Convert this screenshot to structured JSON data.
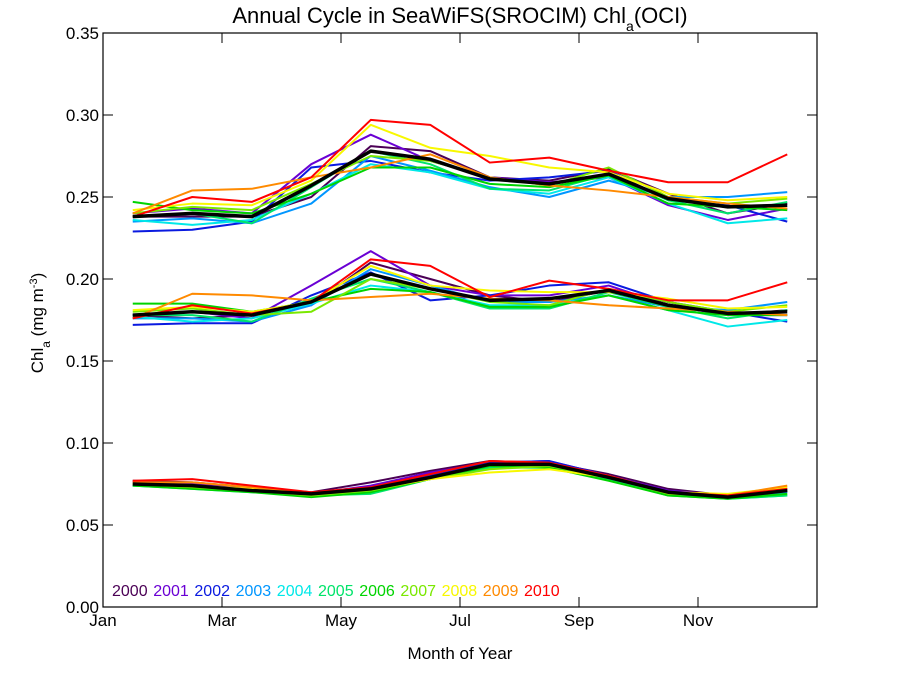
{
  "chart_data": {
    "type": "line",
    "title": "Annual Cycle in SeaWiFS(SROCIM) Chl",
    "title_sub": "a",
    "title_tail": "(OCI)",
    "xlabel": "Month of Year",
    "ylabel_main": "Chl",
    "ylabel_sub": "a",
    "ylabel_units": " (mg m",
    "ylabel_sup": "-3",
    "ylabel_close": ")",
    "xlim": [
      1,
      13
    ],
    "ylim": [
      0,
      0.35
    ],
    "x": [
      1.5,
      2.5,
      3.5,
      4.5,
      5.5,
      6.5,
      7.5,
      8.5,
      9.5,
      10.5,
      11.5,
      12.5
    ],
    "x_ticks": [
      {
        "value": 1,
        "label": "Jan"
      },
      {
        "value": 3,
        "label": "Mar"
      },
      {
        "value": 5,
        "label": "May"
      },
      {
        "value": 7,
        "label": "Jul"
      },
      {
        "value": 9,
        "label": "Sep"
      },
      {
        "value": 11,
        "label": "Nov"
      }
    ],
    "y_ticks": [
      {
        "value": 0.0,
        "label": "0.00"
      },
      {
        "value": 0.05,
        "label": "0.05"
      },
      {
        "value": 0.1,
        "label": "0.10"
      },
      {
        "value": 0.15,
        "label": "0.15"
      },
      {
        "value": 0.2,
        "label": "0.20"
      },
      {
        "value": 0.25,
        "label": "0.25"
      },
      {
        "value": 0.3,
        "label": "0.30"
      },
      {
        "value": 0.35,
        "label": "0.35"
      }
    ],
    "legend_position": "bottom-left",
    "groups": [
      {
        "series": [
          {
            "name": "2000",
            "color": "#4b0055",
            "values": [
              0.238,
              0.238,
              0.238,
              0.25,
              0.281,
              0.278,
              0.262,
              0.26,
              0.267,
              0.252,
              0.24,
              0.246
            ]
          },
          {
            "name": "2001",
            "color": "#6a00d4",
            "values": [
              0.24,
              0.243,
              0.24,
              0.27,
              0.288,
              0.272,
              0.262,
              0.259,
              0.262,
              0.245,
              0.236,
              0.243
            ]
          },
          {
            "name": "2002",
            "color": "#0a1ae0",
            "values": [
              0.229,
              0.23,
              0.235,
              0.268,
              0.272,
              0.265,
              0.26,
              0.262,
              0.266,
              0.248,
              0.245,
              0.235
            ]
          },
          {
            "name": "2003",
            "color": "#0096ff",
            "values": [
              0.235,
              0.237,
              0.234,
              0.246,
              0.275,
              0.266,
              0.256,
              0.25,
              0.26,
              0.25,
              0.25,
              0.253
            ]
          },
          {
            "name": "2004",
            "color": "#00e8e8",
            "values": [
              0.236,
              0.233,
              0.236,
              0.252,
              0.27,
              0.265,
              0.255,
              0.252,
              0.262,
              0.246,
              0.234,
              0.237
            ]
          },
          {
            "name": "2005",
            "color": "#00e46a",
            "values": [
              0.238,
              0.24,
              0.234,
              0.256,
              0.278,
              0.27,
              0.255,
              0.254,
              0.264,
              0.248,
              0.24,
              0.247
            ]
          },
          {
            "name": "2006",
            "color": "#00d400",
            "values": [
              0.247,
              0.242,
              0.24,
              0.252,
              0.268,
              0.268,
              0.258,
              0.256,
              0.263,
              0.246,
              0.244,
              0.242
            ]
          },
          {
            "name": "2007",
            "color": "#7ae800",
            "values": [
              0.24,
              0.244,
              0.242,
              0.258,
              0.275,
              0.272,
              0.262,
              0.257,
              0.268,
              0.25,
              0.246,
              0.249
            ]
          },
          {
            "name": "2008",
            "color": "#f8f800",
            "values": [
              0.242,
              0.246,
              0.245,
              0.26,
              0.294,
              0.28,
              0.275,
              0.268,
              0.265,
              0.252,
              0.248,
              0.25
            ]
          },
          {
            "name": "2009",
            "color": "#ff8a00",
            "values": [
              0.24,
              0.254,
              0.255,
              0.262,
              0.268,
              0.276,
              0.262,
              0.257,
              0.254,
              0.25,
              0.246,
              0.243
            ]
          },
          {
            "name": "2010",
            "color": "#ff0000",
            "values": [
              0.238,
              0.25,
              0.247,
              0.262,
              0.297,
              0.294,
              0.271,
              0.274,
              0.266,
              0.259,
              0.259,
              0.276
            ]
          }
        ],
        "mean": [
          0.238,
          0.24,
          0.238,
          0.257,
          0.278,
          0.273,
          0.261,
          0.258,
          0.264,
          0.249,
          0.244,
          0.245
        ]
      },
      {
        "series": [
          {
            "name": "2000",
            "color": "#4b0055",
            "values": [
              0.178,
              0.176,
              0.178,
              0.184,
              0.21,
              0.2,
              0.19,
              0.186,
              0.193,
              0.186,
              0.178,
              0.181
            ]
          },
          {
            "name": "2001",
            "color": "#6a00d4",
            "values": [
              0.178,
              0.18,
              0.176,
              0.196,
              0.217,
              0.196,
              0.19,
              0.19,
              0.196,
              0.184,
              0.178,
              0.178
            ]
          },
          {
            "name": "2002",
            "color": "#0a1ae0",
            "values": [
              0.172,
              0.173,
              0.173,
              0.19,
              0.204,
              0.187,
              0.19,
              0.196,
              0.198,
              0.186,
              0.18,
              0.174
            ]
          },
          {
            "name": "2003",
            "color": "#0096ff",
            "values": [
              0.176,
              0.176,
              0.174,
              0.184,
              0.206,
              0.196,
              0.186,
              0.186,
              0.19,
              0.183,
              0.181,
              0.186
            ]
          },
          {
            "name": "2004",
            "color": "#00e8e8",
            "values": [
              0.177,
              0.174,
              0.176,
              0.185,
              0.196,
              0.192,
              0.184,
              0.184,
              0.19,
              0.181,
              0.171,
              0.175
            ]
          },
          {
            "name": "2005",
            "color": "#00e46a",
            "values": [
              0.178,
              0.178,
              0.174,
              0.188,
              0.2,
              0.192,
              0.182,
              0.182,
              0.192,
              0.183,
              0.176,
              0.181
            ]
          },
          {
            "name": "2006",
            "color": "#00d400",
            "values": [
              0.185,
              0.185,
              0.18,
              0.186,
              0.194,
              0.192,
              0.183,
              0.183,
              0.19,
              0.181,
              0.178,
              0.178
            ]
          },
          {
            "name": "2007",
            "color": "#7ae800",
            "values": [
              0.18,
              0.182,
              0.178,
              0.18,
              0.2,
              0.194,
              0.186,
              0.184,
              0.194,
              0.186,
              0.18,
              0.184
            ]
          },
          {
            "name": "2008",
            "color": "#f8f800",
            "values": [
              0.181,
              0.183,
              0.18,
              0.186,
              0.208,
              0.196,
              0.193,
              0.192,
              0.192,
              0.188,
              0.182,
              0.183
            ]
          },
          {
            "name": "2009",
            "color": "#ff8a00",
            "values": [
              0.176,
              0.191,
              0.19,
              0.187,
              0.189,
              0.191,
              0.188,
              0.187,
              0.184,
              0.182,
              0.18,
              0.178
            ]
          },
          {
            "name": "2010",
            "color": "#ff0000",
            "values": [
              0.176,
              0.184,
              0.179,
              0.186,
              0.212,
              0.208,
              0.189,
              0.199,
              0.194,
              0.187,
              0.187,
              0.198
            ]
          }
        ],
        "mean": [
          0.178,
          0.18,
          0.178,
          0.186,
          0.203,
          0.194,
          0.187,
          0.188,
          0.193,
          0.184,
          0.179,
          0.18
        ]
      },
      {
        "series": [
          {
            "name": "2000",
            "color": "#4b0055",
            "values": [
              0.077,
              0.076,
              0.073,
              0.07,
              0.076,
              0.083,
              0.089,
              0.088,
              0.081,
              0.072,
              0.068,
              0.071
            ]
          },
          {
            "name": "2001",
            "color": "#6a00d4",
            "values": [
              0.076,
              0.075,
              0.072,
              0.069,
              0.074,
              0.082,
              0.088,
              0.089,
              0.08,
              0.071,
              0.068,
              0.072
            ]
          },
          {
            "name": "2002",
            "color": "#0a1ae0",
            "values": [
              0.075,
              0.074,
              0.071,
              0.069,
              0.072,
              0.08,
              0.088,
              0.089,
              0.08,
              0.07,
              0.067,
              0.071
            ]
          },
          {
            "name": "2003",
            "color": "#0096ff",
            "values": [
              0.075,
              0.073,
              0.071,
              0.068,
              0.071,
              0.079,
              0.086,
              0.087,
              0.079,
              0.069,
              0.067,
              0.07
            ]
          },
          {
            "name": "2004",
            "color": "#00e8e8",
            "values": [
              0.074,
              0.072,
              0.07,
              0.068,
              0.07,
              0.078,
              0.085,
              0.086,
              0.078,
              0.069,
              0.066,
              0.068
            ]
          },
          {
            "name": "2005",
            "color": "#00e46a",
            "values": [
              0.074,
              0.073,
              0.071,
              0.068,
              0.069,
              0.078,
              0.085,
              0.085,
              0.078,
              0.068,
              0.066,
              0.068
            ]
          },
          {
            "name": "2006",
            "color": "#00d400",
            "values": [
              0.074,
              0.072,
              0.07,
              0.067,
              0.07,
              0.078,
              0.086,
              0.085,
              0.077,
              0.068,
              0.066,
              0.069
            ]
          },
          {
            "name": "2007",
            "color": "#7ae800",
            "values": [
              0.075,
              0.073,
              0.071,
              0.068,
              0.071,
              0.078,
              0.084,
              0.086,
              0.079,
              0.069,
              0.068,
              0.071
            ]
          },
          {
            "name": "2008",
            "color": "#f8f800",
            "values": [
              0.075,
              0.074,
              0.072,
              0.069,
              0.072,
              0.078,
              0.082,
              0.084,
              0.079,
              0.07,
              0.069,
              0.073
            ]
          },
          {
            "name": "2009",
            "color": "#ff8a00",
            "values": [
              0.076,
              0.076,
              0.073,
              0.069,
              0.072,
              0.079,
              0.087,
              0.087,
              0.08,
              0.07,
              0.068,
              0.074
            ]
          },
          {
            "name": "2010",
            "color": "#ff0000",
            "values": [
              0.077,
              0.078,
              0.074,
              0.07,
              0.073,
              0.081,
              0.089,
              0.088,
              0.08,
              0.07,
              0.068,
              0.072
            ]
          }
        ],
        "mean": [
          0.075,
          0.074,
          0.071,
          0.069,
          0.072,
          0.079,
          0.087,
          0.087,
          0.079,
          0.07,
          0.067,
          0.071
        ]
      }
    ],
    "legend": [
      {
        "label": "2000",
        "color": "#4b0055"
      },
      {
        "label": "2001",
        "color": "#6a00d4"
      },
      {
        "label": "2002",
        "color": "#0a1ae0"
      },
      {
        "label": "2003",
        "color": "#0096ff"
      },
      {
        "label": "2004",
        "color": "#00e8e8"
      },
      {
        "label": "2005",
        "color": "#00e46a"
      },
      {
        "label": "2006",
        "color": "#00d400"
      },
      {
        "label": "2007",
        "color": "#7ae800"
      },
      {
        "label": "2008",
        "color": "#f8f800"
      },
      {
        "label": "2009",
        "color": "#ff8a00"
      },
      {
        "label": "2010",
        "color": "#ff0000"
      }
    ],
    "mean_color": "#000000"
  }
}
